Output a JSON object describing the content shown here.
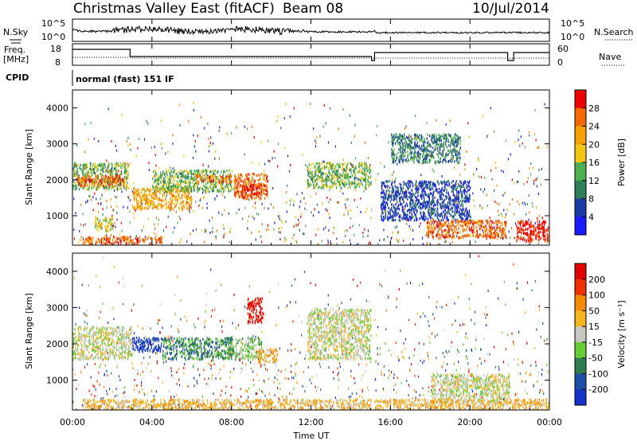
{
  "header": {
    "title": "Christmas Valley East (fitACF)",
    "beam": "Beam 08",
    "date": "10/Jul/2014"
  },
  "summary_panels": {
    "nsky": {
      "label": "N.Sky",
      "ticks": [
        "10^5",
        "10^0"
      ]
    },
    "nsearch": {
      "label": "N.Search",
      "ticks": [
        "10^5",
        "10^0"
      ]
    },
    "freq": {
      "label_line1": "Freq.",
      "label_line2": "[MHz]",
      "ticks": [
        "18",
        "8"
      ]
    },
    "nave": {
      "label": "Nave",
      "ticks": [
        "60",
        "0"
      ]
    },
    "cpid": {
      "label": "CPID",
      "value": "normal (fast) 151 IF"
    }
  },
  "colors": {
    "power": [
      "#1a1aff",
      "#1c3aa6",
      "#2e7d5b",
      "#4caf50",
      "#f3c614",
      "#f5a000",
      "#f36b00",
      "#ee0000"
    ],
    "velocity": [
      "#1432c8",
      "#1e4fa8",
      "#2f7d4f",
      "#66cc33",
      "#c8c8c0",
      "#f5b51e",
      "#f58a00",
      "#ee3300",
      "#e00000"
    ]
  },
  "chart_data": [
    {
      "type": "heatmap",
      "panel": "power",
      "ylabel": "Slant Range [km]",
      "xlabel": "",
      "ylim": [
        180,
        4500
      ],
      "yticks": [
        "4000",
        "3000",
        "2000",
        "1000"
      ],
      "colorbar": {
        "title": "Power [dB]",
        "ticks": [
          "28",
          "24",
          "20",
          "16",
          "12",
          "8",
          "4"
        ]
      },
      "blobs": [
        {
          "t": [
            0.0,
            2.8
          ],
          "r": [
            1750,
            2500
          ],
          "level": 3
        },
        {
          "t": [
            0.2,
            2.6
          ],
          "r": [
            1850,
            2150
          ],
          "level": 6
        },
        {
          "t": [
            1.1,
            2.0
          ],
          "r": [
            600,
            1000
          ],
          "level": 4
        },
        {
          "t": [
            0.5,
            4.5
          ],
          "r": [
            250,
            450
          ],
          "level": 6
        },
        {
          "t": [
            3.0,
            6.0
          ],
          "r": [
            1200,
            1800
          ],
          "level": 5
        },
        {
          "t": [
            4.0,
            8.0
          ],
          "r": [
            1700,
            2300
          ],
          "level": 3
        },
        {
          "t": [
            6.2,
            8.0
          ],
          "r": [
            1950,
            2150
          ],
          "level": 6
        },
        {
          "t": [
            8.1,
            9.8
          ],
          "r": [
            1500,
            2200
          ],
          "level": 6
        },
        {
          "t": [
            8.5,
            9.5
          ],
          "r": [
            1600,
            1900
          ],
          "level": 7
        },
        {
          "t": [
            11.8,
            15.0
          ],
          "r": [
            1800,
            2500
          ],
          "level": 3
        },
        {
          "t": [
            15.5,
            20.0
          ],
          "r": [
            900,
            2000
          ],
          "level": 1
        },
        {
          "t": [
            17.8,
            21.8
          ],
          "r": [
            400,
            900
          ],
          "level": 6
        },
        {
          "t": [
            22.3,
            24.0
          ],
          "r": [
            300,
            900
          ],
          "level": 7
        },
        {
          "t": [
            16.0,
            19.5
          ],
          "r": [
            2500,
            3300
          ],
          "level": 2
        }
      ]
    },
    {
      "type": "heatmap",
      "panel": "velocity",
      "ylabel": "Slant Range [km]",
      "xlabel": "Time UT",
      "ylim": [
        180,
        4500
      ],
      "yticks": [
        "4000",
        "3000",
        "2000",
        "1000"
      ],
      "xticks": [
        "00:00",
        "04:00",
        "08:00",
        "12:00",
        "16:00",
        "20:00",
        "00:00"
      ],
      "colorbar": {
        "title": "Velocity [m s⁻¹]",
        "ticks": [
          "200",
          "100",
          "50",
          "15",
          "-15",
          "-50",
          "-100",
          "-200"
        ]
      },
      "blobs": [
        {
          "t": [
            0.0,
            3.0
          ],
          "r": [
            1600,
            2500
          ],
          "level": 4
        },
        {
          "t": [
            3.0,
            4.5
          ],
          "r": [
            1800,
            2200
          ],
          "level": 0
        },
        {
          "t": [
            4.5,
            8.0
          ],
          "r": [
            1600,
            2200
          ],
          "level": 2
        },
        {
          "t": [
            7.8,
            9.5
          ],
          "r": [
            1600,
            2200
          ],
          "level": 3
        },
        {
          "t": [
            8.8,
            9.6
          ],
          "r": [
            2600,
            3300
          ],
          "level": 8
        },
        {
          "t": [
            9.3,
            10.3
          ],
          "r": [
            1500,
            1900
          ],
          "level": 5
        },
        {
          "t": [
            11.8,
            15.0
          ],
          "r": [
            1600,
            3000
          ],
          "level": 4
        },
        {
          "t": [
            18.0,
            22.0
          ],
          "r": [
            400,
            1200
          ],
          "level": 4
        },
        {
          "t": [
            0.5,
            24.0
          ],
          "r": [
            200,
            500
          ],
          "level": 5
        }
      ]
    }
  ]
}
